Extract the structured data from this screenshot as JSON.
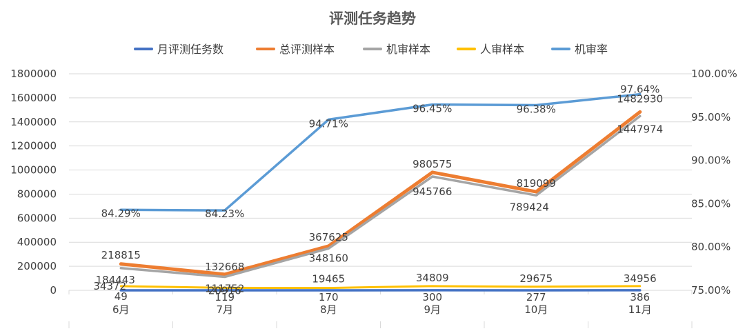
{
  "chart_data": {
    "type": "line",
    "title": "评测任务趋势",
    "categories": [
      "6月",
      "7月",
      "8月",
      "9月",
      "10月",
      "11月"
    ],
    "ylim": [
      0,
      1800000
    ],
    "y_ticks": [
      "0",
      "200000",
      "400000",
      "600000",
      "800000",
      "1000000",
      "1200000",
      "1400000",
      "1600000",
      "1800000"
    ],
    "y2lim": [
      75,
      100
    ],
    "y2_ticks": [
      "75.00%",
      "80.00%",
      "85.00%",
      "90.00%",
      "95.00%",
      "100.00%"
    ],
    "grid": true,
    "legend_position": "top",
    "series": [
      {
        "name": "月评测任务数",
        "axis": "left",
        "color": "#4472C4",
        "values": [
          49,
          119,
          170,
          300,
          277,
          386
        ],
        "labels": [
          "49",
          "119",
          "170",
          "300",
          "277",
          "386"
        ]
      },
      {
        "name": "总评测样本",
        "axis": "left",
        "color": "#ED7D31",
        "values": [
          218815,
          132668,
          367625,
          980575,
          819099,
          1482930
        ],
        "labels": [
          "218815",
          "132668",
          "367625",
          "980575",
          "819099",
          "1482930"
        ]
      },
      {
        "name": "机审样本",
        "axis": "left",
        "color": "#A5A5A5",
        "values": [
          184443,
          111752,
          348160,
          945766,
          789424,
          1447974
        ],
        "labels": [
          "184443",
          "111752",
          "348160",
          "945766",
          "789424",
          "1447974"
        ]
      },
      {
        "name": "人审样本",
        "axis": "left",
        "color": "#FFC000",
        "values": [
          34372,
          20916,
          19465,
          34809,
          29675,
          34956
        ],
        "labels": [
          "34372",
          "20916",
          "19465",
          "34809",
          "29675",
          "34956"
        ]
      },
      {
        "name": "机审率",
        "axis": "right",
        "color": "#5B9BD5",
        "values": [
          84.29,
          84.23,
          94.71,
          96.45,
          96.38,
          97.64
        ],
        "labels": [
          "84.29%",
          "84.23%",
          "94.71%",
          "96.45%",
          "96.38%",
          "97.64%"
        ]
      }
    ]
  }
}
